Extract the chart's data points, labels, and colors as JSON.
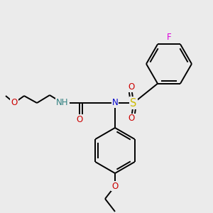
{
  "background_color": "#ebebeb",
  "bond_color": "#000000",
  "figsize": [
    3.0,
    3.0
  ],
  "dpi": 100,
  "colors": {
    "O": "#cc0000",
    "N": "#0000cc",
    "NH": "#2f7f7f",
    "S": "#ccbb00",
    "F": "#dd00dd",
    "C": "#000000"
  },
  "font_size": 8.5
}
